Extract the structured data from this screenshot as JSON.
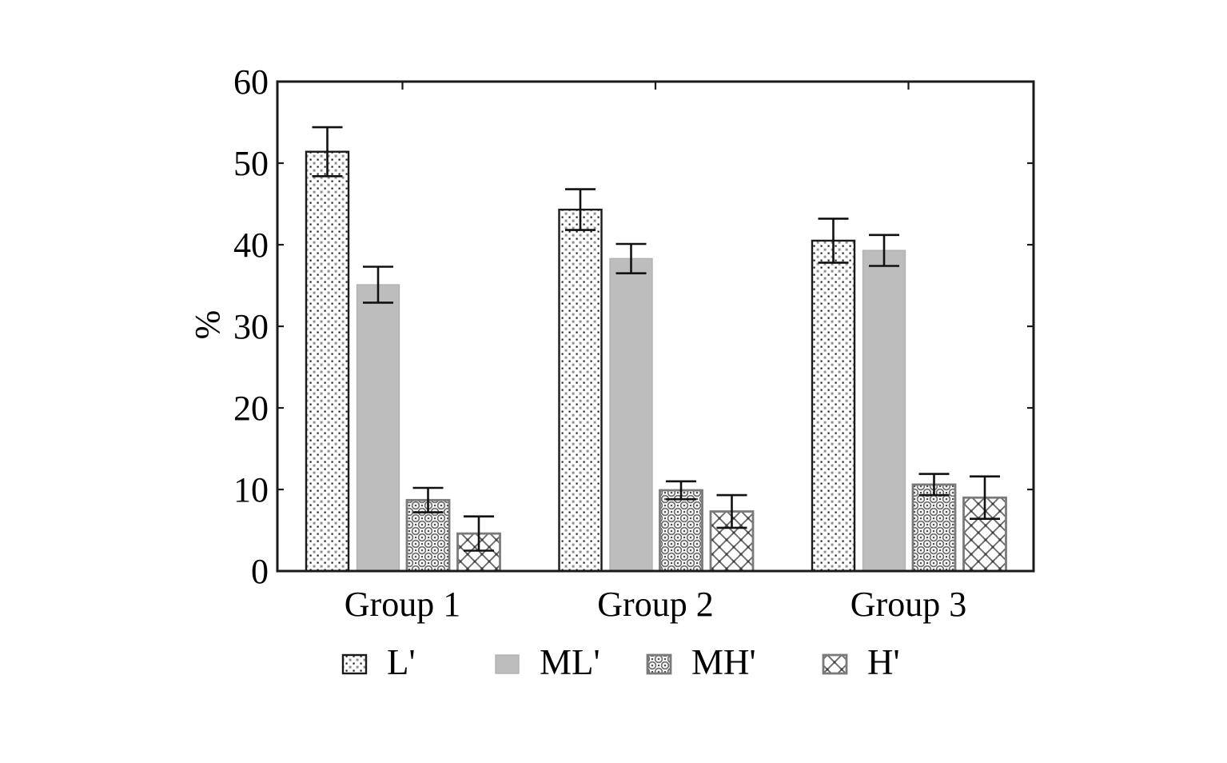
{
  "figure": {
    "background": "#ffffff",
    "text_color": "#000000",
    "frame_color": "#1a1a1a",
    "error_bar_color": "#111111"
  },
  "chart_data": {
    "type": "bar",
    "title": "",
    "xlabel": "",
    "ylabel": "%",
    "ylim": [
      0,
      60
    ],
    "yticks": [
      0,
      10,
      20,
      30,
      40,
      50,
      60
    ],
    "grid": false,
    "error_bars": true,
    "legend_position": "bottom",
    "categories": [
      "Group 1",
      "Group 2",
      "Group 3"
    ],
    "series": [
      {
        "name": "L'",
        "values": [
          51.4,
          44.3,
          40.5
        ],
        "errors": [
          3.0,
          2.5,
          2.7
        ],
        "pattern": "dots",
        "fill": "#ffffff",
        "border": "#1a1a1a"
      },
      {
        "name": "ML'",
        "values": [
          35.1,
          38.3,
          39.3
        ],
        "errors": [
          2.2,
          1.8,
          1.9
        ],
        "pattern": "solid",
        "fill": "#bdbdbd",
        "border": "#b2b2b2"
      },
      {
        "name": "MH'",
        "values": [
          8.7,
          9.9,
          10.6
        ],
        "errors": [
          1.5,
          1.1,
          1.3
        ],
        "pattern": "ornament",
        "fill": "#ffffff",
        "border": "#7a7a7a"
      },
      {
        "name": "H'",
        "values": [
          4.6,
          7.3,
          9.0
        ],
        "errors": [
          2.1,
          2.0,
          2.6
        ],
        "pattern": "crosshatch",
        "fill": "#ffffff",
        "border": "#7a7a7a"
      }
    ]
  }
}
